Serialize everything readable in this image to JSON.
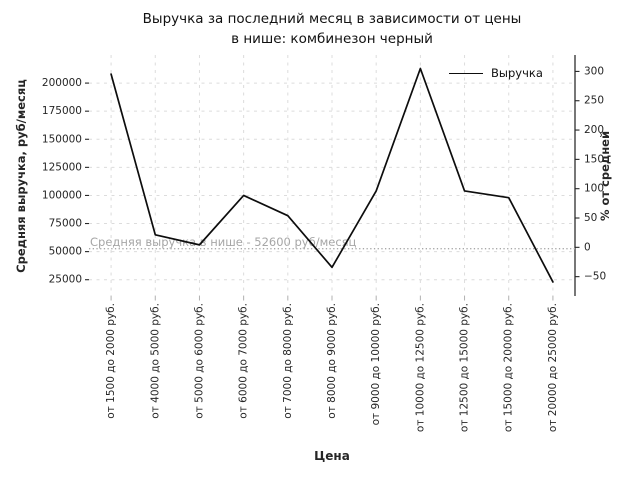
{
  "title": {
    "line1": "Выручка за последний месяц в зависимости от цены",
    "line2": "в нише: комбинезон черный"
  },
  "chart_data": {
    "type": "line",
    "title": "Выручка за последний месяц в зависимости от цены в нише: комбинезон черный",
    "xlabel": "Цена",
    "ylabel_left": "Средняя выручка, руб/месяц",
    "ylabel_right": "% от средней",
    "legend": {
      "entries": [
        "Выручка"
      ],
      "position": "upper right",
      "frame": false
    },
    "grid": true,
    "categories": [
      "от 1500 до 2000 руб.",
      "от 4000 до 5000 руб.",
      "от 5000 до 6000 руб.",
      "от 6000 до 7000 руб.",
      "от 7000 до 8000 руб.",
      "от 8000 до 9000 руб.",
      "от 9000 до 10000 руб.",
      "от 10000 до 12500 руб.",
      "от 12500 до 15000 руб.",
      "от 15000 до 20000 руб.",
      "от 20000 до 25000 руб."
    ],
    "series": [
      {
        "name": "Выручка",
        "values": [
          208000,
          65000,
          56000,
          100000,
          82000,
          36000,
          104000,
          213000,
          104000,
          98000,
          23000
        ]
      }
    ],
    "left_axis": {
      "ticks": [
        25000,
        50000,
        75000,
        100000,
        125000,
        150000,
        175000,
        200000
      ],
      "lim": [
        10500,
        225000
      ]
    },
    "right_axis": {
      "tick_values": [
        -50,
        0,
        50,
        100,
        150,
        200,
        250,
        300
      ],
      "tick_labels": [
        "−50",
        "0",
        "50",
        "100",
        "150",
        "200",
        "250",
        "300"
      ],
      "lim": [
        -83,
        328
      ]
    },
    "average_line": {
      "value": 52600,
      "label": "Средняя выручка в нише - 52600 руб/месяц"
    },
    "colors": {
      "line": "#0d0d0d",
      "grid": "#dcdcdc",
      "text": "#262626",
      "annotation": "#a6a6a6",
      "average_line": "#a8a8a8",
      "bottom_ticks": "#b0b0b0",
      "spine": "#262626"
    }
  }
}
